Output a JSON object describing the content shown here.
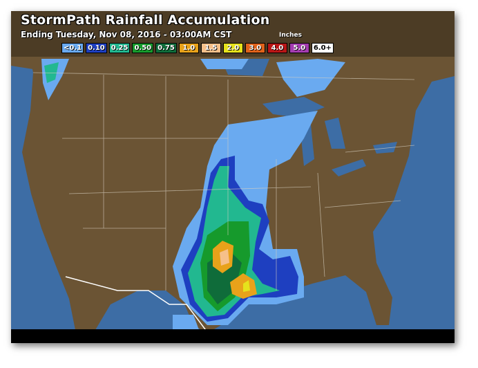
{
  "header": {
    "title": "StormPath Rainfall Accumulation",
    "subtitle": "Ending Tuesday, Nov 08, 2016 - 03:00AM CST",
    "units": "Inches"
  },
  "legend": [
    {
      "label": "<0.1",
      "color": "#6aaaf0"
    },
    {
      "label": "0.10",
      "color": "#1e3fc0"
    },
    {
      "label": "0.25",
      "color": "#22b890"
    },
    {
      "label": "0.50",
      "color": "#169a2c"
    },
    {
      "label": "0.75",
      "color": "#0f6c3a"
    },
    {
      "label": "1.0",
      "color": "#e8a21a"
    },
    {
      "label": "1.5",
      "color": "#f6c08a"
    },
    {
      "label": "2.0",
      "color": "#e6e21c"
    },
    {
      "label": "3.0",
      "color": "#e0621a"
    },
    {
      "label": "4.0",
      "color": "#b81616"
    },
    {
      "label": "5.0",
      "color": "#a43cb0"
    },
    {
      "label": "6.0+",
      "color": "#ffffff"
    }
  ],
  "colors": {
    "ocean": "#3d6da5",
    "land": "#6b5434",
    "borders": "#d8d0c0"
  }
}
